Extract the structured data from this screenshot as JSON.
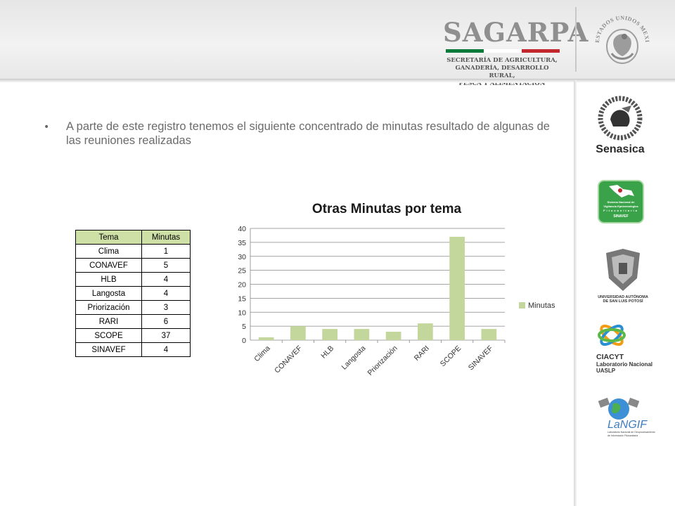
{
  "header": {
    "brand": "SAGARPA",
    "subtitle_lines": [
      "SECRETARÍA DE AGRICULTURA,",
      "GANADERÍA, DESARROLLO RURAL,",
      "PESCA Y ALIMENTACIÓN"
    ],
    "seal_text": "ESTADOS UNIDOS MEXICANOS",
    "flag_colors": [
      "#0b7a3b",
      "#ffffff",
      "#c1272d"
    ]
  },
  "content": {
    "bullet_symbol": "•",
    "text": "A parte de este registro tenemos el siguiente concentrado de minutas resultado de algunas de las reuniones realizadas"
  },
  "table": {
    "headers": [
      "Tema",
      "Minutas"
    ],
    "rows": [
      [
        "Clima",
        "1"
      ],
      [
        "CONAVEF",
        "5"
      ],
      [
        "HLB",
        "4"
      ],
      [
        "Langosta",
        "4"
      ],
      [
        "Priorización",
        "3"
      ],
      [
        "RARI",
        "6"
      ],
      [
        "SCOPE",
        "37"
      ],
      [
        "SINAVEF",
        "4"
      ]
    ]
  },
  "chart_data": {
    "type": "bar",
    "title": "Otras Minutas por tema",
    "categories": [
      "Clima",
      "CONAVEF",
      "HLB",
      "Langosta",
      "Priorización",
      "RARI",
      "SCOPE",
      "SINAVEF"
    ],
    "series": [
      {
        "name": "Minutas",
        "values": [
          1,
          5,
          4,
          4,
          3,
          6,
          37,
          4
        ],
        "color": "#c3d69b"
      }
    ],
    "yticks": [
      "0",
      "5",
      "10",
      "15",
      "20",
      "25",
      "30",
      "35",
      "40"
    ],
    "ylim": [
      0,
      40
    ],
    "grid": true,
    "legend": "right"
  },
  "sidebar_logos": {
    "senasica": {
      "name": "Senasica",
      "ring_text": "Servicio Nacional de Sanidad, Inocuidad y Calidad Agroalimentaria",
      "color": "#2b2b2b"
    },
    "sinavef": {
      "lines": [
        "Sistema Nacional de",
        "Vigilancia Epidemiológica",
        "Fitosanitaria",
        "SINAVEF"
      ],
      "color": "#3aa34a"
    },
    "uaslp": {
      "lines": [
        "UNIVERSIDAD AUTÓNOMA",
        "DE SAN LUIS POTOSÍ"
      ]
    },
    "ciacyt": {
      "lines": [
        "CIACYT",
        "Laboratorio Nacional",
        "UASLP"
      ]
    },
    "langif": {
      "name": "LaNGIF",
      "lines": [
        "Laboratorio Nacional de Geoprocesamiento",
        "de Información Fitosanitaria"
      ]
    }
  }
}
